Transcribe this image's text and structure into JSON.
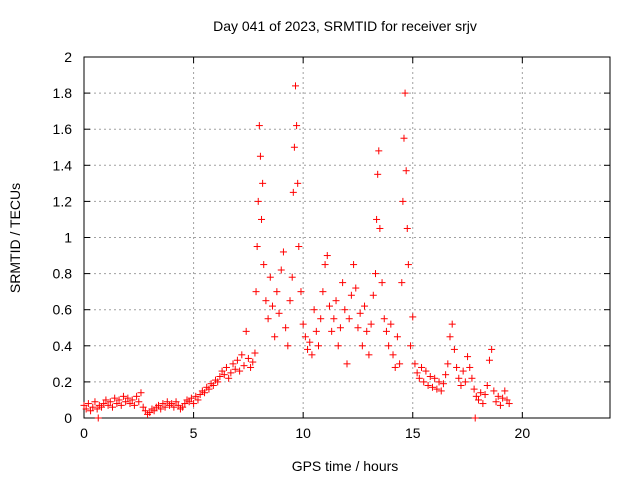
{
  "chart_data": {
    "type": "scatter",
    "title": "Day 041 of 2023, SRMTID for receiver srjv",
    "xlabel": "GPS time / hours",
    "ylabel": "SRMTID / TECUs",
    "xlim": [
      0,
      24
    ],
    "ylim": [
      0,
      2
    ],
    "xticks": [
      0,
      5,
      10,
      15,
      20
    ],
    "yticks": [
      0,
      0.2,
      0.4,
      0.6,
      0.8,
      1,
      1.2,
      1.4,
      1.6,
      1.8,
      2
    ],
    "xtick_labels": [
      "0",
      "5",
      "10",
      "15",
      "20"
    ],
    "ytick_labels": [
      "0",
      "0.2",
      "0.4",
      "0.6",
      "0.8",
      "1",
      "1.2",
      "1.4",
      "1.6",
      "1.8",
      "2"
    ],
    "grid": true,
    "marker": "+",
    "color": "#ff0000",
    "series": [
      {
        "name": "srjv",
        "points": [
          [
            0.0,
            0.07
          ],
          [
            0.1,
            0.05
          ],
          [
            0.2,
            0.08
          ],
          [
            0.3,
            0.04
          ],
          [
            0.4,
            0.06
          ],
          [
            0.5,
            0.09
          ],
          [
            0.6,
            0.05
          ],
          [
            0.65,
            0.0
          ],
          [
            0.7,
            0.07
          ],
          [
            0.8,
            0.06
          ],
          [
            0.9,
            0.08
          ],
          [
            1.0,
            0.1
          ],
          [
            1.1,
            0.07
          ],
          [
            1.2,
            0.09
          ],
          [
            1.3,
            0.06
          ],
          [
            1.4,
            0.11
          ],
          [
            1.5,
            0.08
          ],
          [
            1.6,
            0.1
          ],
          [
            1.7,
            0.07
          ],
          [
            1.8,
            0.12
          ],
          [
            1.9,
            0.09
          ],
          [
            2.0,
            0.11
          ],
          [
            2.1,
            0.08
          ],
          [
            2.2,
            0.1
          ],
          [
            2.3,
            0.07
          ],
          [
            2.4,
            0.12
          ],
          [
            2.5,
            0.09
          ],
          [
            2.6,
            0.14
          ],
          [
            2.7,
            0.06
          ],
          [
            2.8,
            0.04
          ],
          [
            2.9,
            0.02
          ],
          [
            3.0,
            0.03
          ],
          [
            3.1,
            0.05
          ],
          [
            3.2,
            0.04
          ],
          [
            3.3,
            0.06
          ],
          [
            3.4,
            0.07
          ],
          [
            3.5,
            0.05
          ],
          [
            3.6,
            0.08
          ],
          [
            3.7,
            0.06
          ],
          [
            3.8,
            0.09
          ],
          [
            3.9,
            0.07
          ],
          [
            4.0,
            0.08
          ],
          [
            4.1,
            0.06
          ],
          [
            4.2,
            0.09
          ],
          [
            4.3,
            0.07
          ],
          [
            4.4,
            0.05
          ],
          [
            4.5,
            0.06
          ],
          [
            4.6,
            0.08
          ],
          [
            4.7,
            0.1
          ],
          [
            4.8,
            0.09
          ],
          [
            4.9,
            0.11
          ],
          [
            5.0,
            0.08
          ],
          [
            5.1,
            0.12
          ],
          [
            5.2,
            0.1
          ],
          [
            5.3,
            0.13
          ],
          [
            5.4,
            0.15
          ],
          [
            5.5,
            0.14
          ],
          [
            5.6,
            0.17
          ],
          [
            5.7,
            0.16
          ],
          [
            5.8,
            0.19
          ],
          [
            5.9,
            0.18
          ],
          [
            6.0,
            0.21
          ],
          [
            6.1,
            0.2
          ],
          [
            6.2,
            0.23
          ],
          [
            6.3,
            0.26
          ],
          [
            6.4,
            0.24
          ],
          [
            6.5,
            0.28
          ],
          [
            6.6,
            0.22
          ],
          [
            6.7,
            0.25
          ],
          [
            6.8,
            0.3
          ],
          [
            6.9,
            0.27
          ],
          [
            7.0,
            0.32
          ],
          [
            7.1,
            0.26
          ],
          [
            7.2,
            0.35
          ],
          [
            7.3,
            0.29
          ],
          [
            7.4,
            0.48
          ],
          [
            7.5,
            0.33
          ],
          [
            7.6,
            0.28
          ],
          [
            7.7,
            0.31
          ],
          [
            7.8,
            0.36
          ],
          [
            7.85,
            0.7
          ],
          [
            7.9,
            0.95
          ],
          [
            7.95,
            1.2
          ],
          [
            8.0,
            1.62
          ],
          [
            8.05,
            1.45
          ],
          [
            8.1,
            1.1
          ],
          [
            8.15,
            1.3
          ],
          [
            8.2,
            0.85
          ],
          [
            8.3,
            0.65
          ],
          [
            8.4,
            0.55
          ],
          [
            8.5,
            0.78
          ],
          [
            8.6,
            0.62
          ],
          [
            8.7,
            0.45
          ],
          [
            8.8,
            0.7
          ],
          [
            8.9,
            0.58
          ],
          [
            9.0,
            0.82
          ],
          [
            9.1,
            0.92
          ],
          [
            9.2,
            0.5
          ],
          [
            9.3,
            0.4
          ],
          [
            9.4,
            0.65
          ],
          [
            9.5,
            0.78
          ],
          [
            9.55,
            1.25
          ],
          [
            9.6,
            1.5
          ],
          [
            9.65,
            1.84
          ],
          [
            9.7,
            1.62
          ],
          [
            9.75,
            1.3
          ],
          [
            9.8,
            0.95
          ],
          [
            9.9,
            0.7
          ],
          [
            10.0,
            0.52
          ],
          [
            10.1,
            0.45
          ],
          [
            10.2,
            0.38
          ],
          [
            10.3,
            0.42
          ],
          [
            10.4,
            0.35
          ],
          [
            10.5,
            0.6
          ],
          [
            10.6,
            0.48
          ],
          [
            10.7,
            0.4
          ],
          [
            10.8,
            0.55
          ],
          [
            10.9,
            0.7
          ],
          [
            11.0,
            0.85
          ],
          [
            11.1,
            0.9
          ],
          [
            11.2,
            0.62
          ],
          [
            11.3,
            0.48
          ],
          [
            11.4,
            0.55
          ],
          [
            11.5,
            0.65
          ],
          [
            11.6,
            0.4
          ],
          [
            11.7,
            0.5
          ],
          [
            11.8,
            0.75
          ],
          [
            11.9,
            0.6
          ],
          [
            12.0,
            0.3
          ],
          [
            12.1,
            0.55
          ],
          [
            12.2,
            0.68
          ],
          [
            12.3,
            0.85
          ],
          [
            12.4,
            0.72
          ],
          [
            12.5,
            0.5
          ],
          [
            12.6,
            0.58
          ],
          [
            12.7,
            0.4
          ],
          [
            12.8,
            0.62
          ],
          [
            12.9,
            0.48
          ],
          [
            13.0,
            0.35
          ],
          [
            13.1,
            0.52
          ],
          [
            13.2,
            0.68
          ],
          [
            13.3,
            0.8
          ],
          [
            13.35,
            1.1
          ],
          [
            13.4,
            1.35
          ],
          [
            13.45,
            1.48
          ],
          [
            13.5,
            1.05
          ],
          [
            13.6,
            0.75
          ],
          [
            13.7,
            0.55
          ],
          [
            13.8,
            0.48
          ],
          [
            13.9,
            0.4
          ],
          [
            14.0,
            0.52
          ],
          [
            14.1,
            0.35
          ],
          [
            14.2,
            0.28
          ],
          [
            14.3,
            0.45
          ],
          [
            14.4,
            0.3
          ],
          [
            14.5,
            0.75
          ],
          [
            14.55,
            1.2
          ],
          [
            14.6,
            1.55
          ],
          [
            14.65,
            1.8
          ],
          [
            14.7,
            1.37
          ],
          [
            14.75,
            1.05
          ],
          [
            14.8,
            0.85
          ],
          [
            14.9,
            0.4
          ],
          [
            15.0,
            0.56
          ],
          [
            15.1,
            0.3
          ],
          [
            15.2,
            0.25
          ],
          [
            15.3,
            0.22
          ],
          [
            15.4,
            0.28
          ],
          [
            15.5,
            0.2
          ],
          [
            15.6,
            0.26
          ],
          [
            15.7,
            0.18
          ],
          [
            15.8,
            0.23
          ],
          [
            15.9,
            0.17
          ],
          [
            16.0,
            0.22
          ],
          [
            16.1,
            0.16
          ],
          [
            16.2,
            0.2
          ],
          [
            16.3,
            0.15
          ],
          [
            16.4,
            0.19
          ],
          [
            16.5,
            0.24
          ],
          [
            16.6,
            0.3
          ],
          [
            16.7,
            0.45
          ],
          [
            16.8,
            0.52
          ],
          [
            16.9,
            0.38
          ],
          [
            17.0,
            0.28
          ],
          [
            17.1,
            0.22
          ],
          [
            17.2,
            0.18
          ],
          [
            17.3,
            0.26
          ],
          [
            17.4,
            0.2
          ],
          [
            17.5,
            0.34
          ],
          [
            17.6,
            0.28
          ],
          [
            17.7,
            0.22
          ],
          [
            17.8,
            0.16
          ],
          [
            17.85,
            0.0
          ],
          [
            17.9,
            0.12
          ],
          [
            18.0,
            0.1
          ],
          [
            18.1,
            0.14
          ],
          [
            18.2,
            0.08
          ],
          [
            18.3,
            0.13
          ],
          [
            18.4,
            0.18
          ],
          [
            18.5,
            0.32
          ],
          [
            18.6,
            0.38
          ],
          [
            18.7,
            0.15
          ],
          [
            18.8,
            0.09
          ],
          [
            18.9,
            0.12
          ],
          [
            19.0,
            0.07
          ],
          [
            19.1,
            0.11
          ],
          [
            19.2,
            0.15
          ],
          [
            19.3,
            0.1
          ],
          [
            19.4,
            0.08
          ]
        ]
      }
    ]
  }
}
